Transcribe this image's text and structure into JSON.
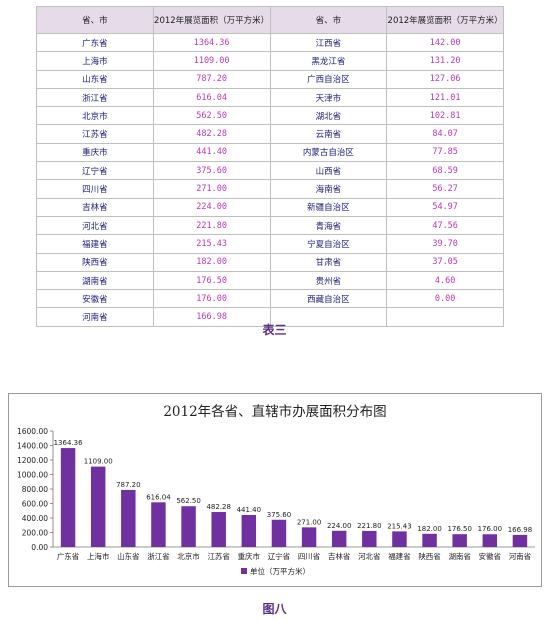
{
  "table": {
    "caption": "表三",
    "headers": [
      "省、市",
      "2012年展览面积（万平方米）",
      "省、市",
      "2012年展览面积（万平方米）"
    ],
    "rows": [
      [
        "广东省",
        "1364.36",
        "江西省",
        "142.00"
      ],
      [
        "上海市",
        "1109.00",
        "黑龙江省",
        "131.20"
      ],
      [
        "山东省",
        "787.20",
        "广西自治区",
        "127.06"
      ],
      [
        "浙江省",
        "616.04",
        "天津市",
        "121.01"
      ],
      [
        "北京市",
        "562.50",
        "湖北省",
        "102.81"
      ],
      [
        "江苏省",
        "482.28",
        "云南省",
        "84.07"
      ],
      [
        "重庆市",
        "441.40",
        "内蒙古自治区",
        "77.85"
      ],
      [
        "辽宁省",
        "375.60",
        "山西省",
        "68.59"
      ],
      [
        "四川省",
        "271.00",
        "海南省",
        "56.27"
      ],
      [
        "吉林省",
        "224.00",
        "新疆自治区",
        "54.97"
      ],
      [
        "河北省",
        "221.80",
        "青海省",
        "47.56"
      ],
      [
        "福建省",
        "215.43",
        "宁夏自治区",
        "39.70"
      ],
      [
        "陕西省",
        "182.00",
        "甘肃省",
        "37.05"
      ],
      [
        "湖南省",
        "176.50",
        "贵州省",
        "4.60"
      ],
      [
        "安徽省",
        "176.00",
        "西藏自治区",
        "0.00"
      ],
      [
        "河南省",
        "166.98",
        "",
        ""
      ]
    ]
  },
  "figure_caption": "图八",
  "chart_data": {
    "type": "bar",
    "title": "2012年各省、直辖市办展面积分布图",
    "categories": [
      "广东省",
      "上海市",
      "山东省",
      "浙江省",
      "北京市",
      "江苏省",
      "重庆市",
      "辽宁省",
      "四川省",
      "吉林省",
      "河北省",
      "福建省",
      "陕西省",
      "湖南省",
      "安徽省",
      "河南省"
    ],
    "series": [
      {
        "name": "单位（万平方米）",
        "values": [
          1364.36,
          1109.0,
          787.2,
          616.04,
          562.5,
          482.28,
          441.4,
          375.6,
          271.0,
          224.0,
          221.8,
          215.43,
          182.0,
          176.5,
          176.0,
          166.98
        ],
        "labels": [
          "1364.36",
          "1109.00",
          "787.20",
          "616.04",
          "562.50",
          "482.28",
          "441.40",
          "375.60",
          "271.00",
          "224.00",
          "221.80",
          "215.43",
          "182.00",
          "176.50",
          "176.00",
          "166.98"
        ]
      }
    ],
    "yticks": [
      "0.00",
      "200.00",
      "400.00",
      "600.00",
      "800.00",
      "1000.00",
      "1200.00",
      "1400.00",
      "1600.00"
    ],
    "ylim": [
      0,
      1600
    ],
    "legend_position": "bottom",
    "bar_color": "#7030a0"
  }
}
